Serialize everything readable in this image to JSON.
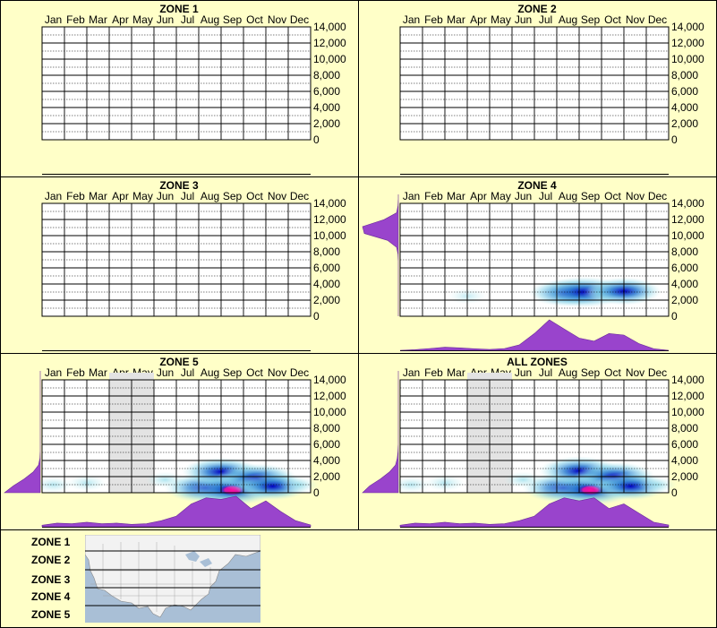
{
  "months": [
    "Jan",
    "Feb",
    "Mar",
    "Apr",
    "May",
    "Jun",
    "Jul",
    "Aug",
    "Sep",
    "Oct",
    "Nov",
    "Dec"
  ],
  "y_tick_labels": [
    "14,000",
    "12,000",
    "10,000",
    "8,000",
    "6,000",
    "4,000",
    "2,000",
    "0"
  ],
  "colors": {
    "background": "#ffffc8",
    "panel_border": "#000000",
    "density": "#9944cc",
    "heat_low": "#c8f0f0",
    "heat_mid": "#2a7ad0",
    "heat_high": "#0000c0",
    "heat_peak": "#ff10a0",
    "inactive_month": "#e3e3e3"
  },
  "chart_data": [
    {
      "type": "heatmap",
      "title": "ZONE 1",
      "x": [
        "Jan",
        "Feb",
        "Mar",
        "Apr",
        "May",
        "Jun",
        "Jul",
        "Aug",
        "Sep",
        "Oct",
        "Nov",
        "Dec"
      ],
      "ylim": [
        0,
        14000
      ],
      "yticks": [
        0,
        2000,
        4000,
        6000,
        8000,
        10000,
        12000,
        14000
      ],
      "hotspots": [],
      "month_density": [],
      "elevation_density": [],
      "shaded_months": []
    },
    {
      "type": "heatmap",
      "title": "ZONE 2",
      "x": [
        "Jan",
        "Feb",
        "Mar",
        "Apr",
        "May",
        "Jun",
        "Jul",
        "Aug",
        "Sep",
        "Oct",
        "Nov",
        "Dec"
      ],
      "ylim": [
        0,
        14000
      ],
      "yticks": [
        0,
        2000,
        4000,
        6000,
        8000,
        10000,
        12000,
        14000
      ],
      "hotspots": [],
      "month_density": [],
      "elevation_density": [],
      "shaded_months": []
    },
    {
      "type": "heatmap",
      "title": "ZONE 3",
      "x": [
        "Jan",
        "Feb",
        "Mar",
        "Apr",
        "May",
        "Jun",
        "Jul",
        "Aug",
        "Sep",
        "Oct",
        "Nov",
        "Dec"
      ],
      "ylim": [
        0,
        14000
      ],
      "yticks": [
        0,
        2000,
        4000,
        6000,
        8000,
        10000,
        12000,
        14000
      ],
      "hotspots": [],
      "month_density": [],
      "elevation_density": [],
      "shaded_months": []
    },
    {
      "type": "heatmap",
      "title": "ZONE 4",
      "x": [
        "Jan",
        "Feb",
        "Mar",
        "Apr",
        "May",
        "Jun",
        "Jul",
        "Aug",
        "Sep",
        "Oct",
        "Nov",
        "Dec"
      ],
      "ylim": [
        0,
        14000
      ],
      "yticks": [
        0,
        2000,
        4000,
        6000,
        8000,
        10000,
        12000,
        14000
      ],
      "hotspots": [
        {
          "month": 7.4,
          "elev": 2900,
          "intensity": 0.55
        },
        {
          "month": 8.2,
          "elev": 3000,
          "intensity": 0.9
        },
        {
          "month": 9.0,
          "elev": 2900,
          "intensity": 0.45
        },
        {
          "month": 10.0,
          "elev": 3100,
          "intensity": 0.6
        },
        {
          "month": 3.0,
          "elev": 2500,
          "intensity": 0.15
        }
      ],
      "month_density": [
        0.0,
        0.02,
        0.06,
        0.1,
        0.08,
        0.05,
        0.03,
        0.06,
        0.18,
        0.55,
        1.0,
        0.7,
        0.4,
        0.3,
        0.55,
        0.5,
        0.22,
        0.05,
        0.0
      ],
      "elevation_density": [
        0,
        0,
        0,
        0,
        0,
        0,
        0,
        0,
        0,
        0.01,
        0.05,
        0.3,
        0.95,
        1.0,
        0.4,
        0.05,
        0.01,
        0,
        0
      ],
      "shaded_months": []
    },
    {
      "type": "heatmap",
      "title": "ZONE 5",
      "x": [
        "Jan",
        "Feb",
        "Mar",
        "Apr",
        "May",
        "Jun",
        "Jul",
        "Aug",
        "Sep",
        "Oct",
        "Nov",
        "Dec"
      ],
      "ylim": [
        0,
        14000
      ],
      "yticks": [
        0,
        2000,
        4000,
        6000,
        8000,
        10000,
        12000,
        14000
      ],
      "hotspots": [
        {
          "month": 0.5,
          "elev": 1000,
          "intensity": 0.3
        },
        {
          "month": 2.0,
          "elev": 1200,
          "intensity": 0.3
        },
        {
          "month": 5.5,
          "elev": 1600,
          "intensity": 0.35
        },
        {
          "month": 7.3,
          "elev": 600,
          "intensity": 0.8
        },
        {
          "month": 8.0,
          "elev": 2600,
          "intensity": 0.7
        },
        {
          "month": 8.5,
          "elev": 400,
          "intensity": 1.0
        },
        {
          "month": 9.6,
          "elev": 1800,
          "intensity": 0.75
        },
        {
          "month": 10.3,
          "elev": 800,
          "intensity": 0.6
        },
        {
          "month": 11.5,
          "elev": 1000,
          "intensity": 0.3
        }
      ],
      "month_density": [
        0.05,
        0.12,
        0.1,
        0.15,
        0.1,
        0.12,
        0.08,
        0.1,
        0.2,
        0.35,
        0.75,
        0.95,
        0.9,
        1.0,
        0.6,
        0.85,
        0.5,
        0.2,
        0.06
      ],
      "elevation_density": [
        1.0,
        0.75,
        0.45,
        0.2,
        0.05,
        0.01,
        0,
        0,
        0,
        0,
        0,
        0,
        0,
        0,
        0,
        0,
        0,
        0,
        0
      ],
      "shaded_months": [
        "Apr",
        "May"
      ]
    },
    {
      "type": "heatmap",
      "title": "ALL ZONES",
      "x": [
        "Jan",
        "Feb",
        "Mar",
        "Apr",
        "May",
        "Jun",
        "Jul",
        "Aug",
        "Sep",
        "Oct",
        "Nov",
        "Dec"
      ],
      "ylim": [
        0,
        14000
      ],
      "yticks": [
        0,
        2000,
        4000,
        6000,
        8000,
        10000,
        12000,
        14000
      ],
      "hotspots": [
        {
          "month": 0.5,
          "elev": 1000,
          "intensity": 0.3
        },
        {
          "month": 2.0,
          "elev": 1200,
          "intensity": 0.3
        },
        {
          "month": 5.5,
          "elev": 1600,
          "intensity": 0.35
        },
        {
          "month": 7.3,
          "elev": 600,
          "intensity": 0.8
        },
        {
          "month": 8.0,
          "elev": 2700,
          "intensity": 0.75
        },
        {
          "month": 8.5,
          "elev": 400,
          "intensity": 1.0
        },
        {
          "month": 9.6,
          "elev": 2000,
          "intensity": 0.75
        },
        {
          "month": 10.3,
          "elev": 800,
          "intensity": 0.6
        },
        {
          "month": 11.5,
          "elev": 1000,
          "intensity": 0.3
        }
      ],
      "month_density": [
        0.05,
        0.12,
        0.1,
        0.15,
        0.1,
        0.12,
        0.08,
        0.1,
        0.2,
        0.35,
        0.75,
        0.95,
        0.85,
        0.95,
        0.6,
        0.75,
        0.45,
        0.15,
        0.06
      ],
      "elevation_density": [
        1.0,
        0.8,
        0.5,
        0.25,
        0.08,
        0.03,
        0.01,
        0,
        0,
        0,
        0,
        0,
        0,
        0,
        0,
        0,
        0,
        0,
        0
      ],
      "shaded_months": [
        "Apr",
        "May"
      ]
    }
  ],
  "legend": {
    "zones": [
      "ZONE 1",
      "ZONE 2",
      "ZONE 3",
      "ZONE 4",
      "ZONE 5"
    ],
    "map": "north-america-map"
  }
}
